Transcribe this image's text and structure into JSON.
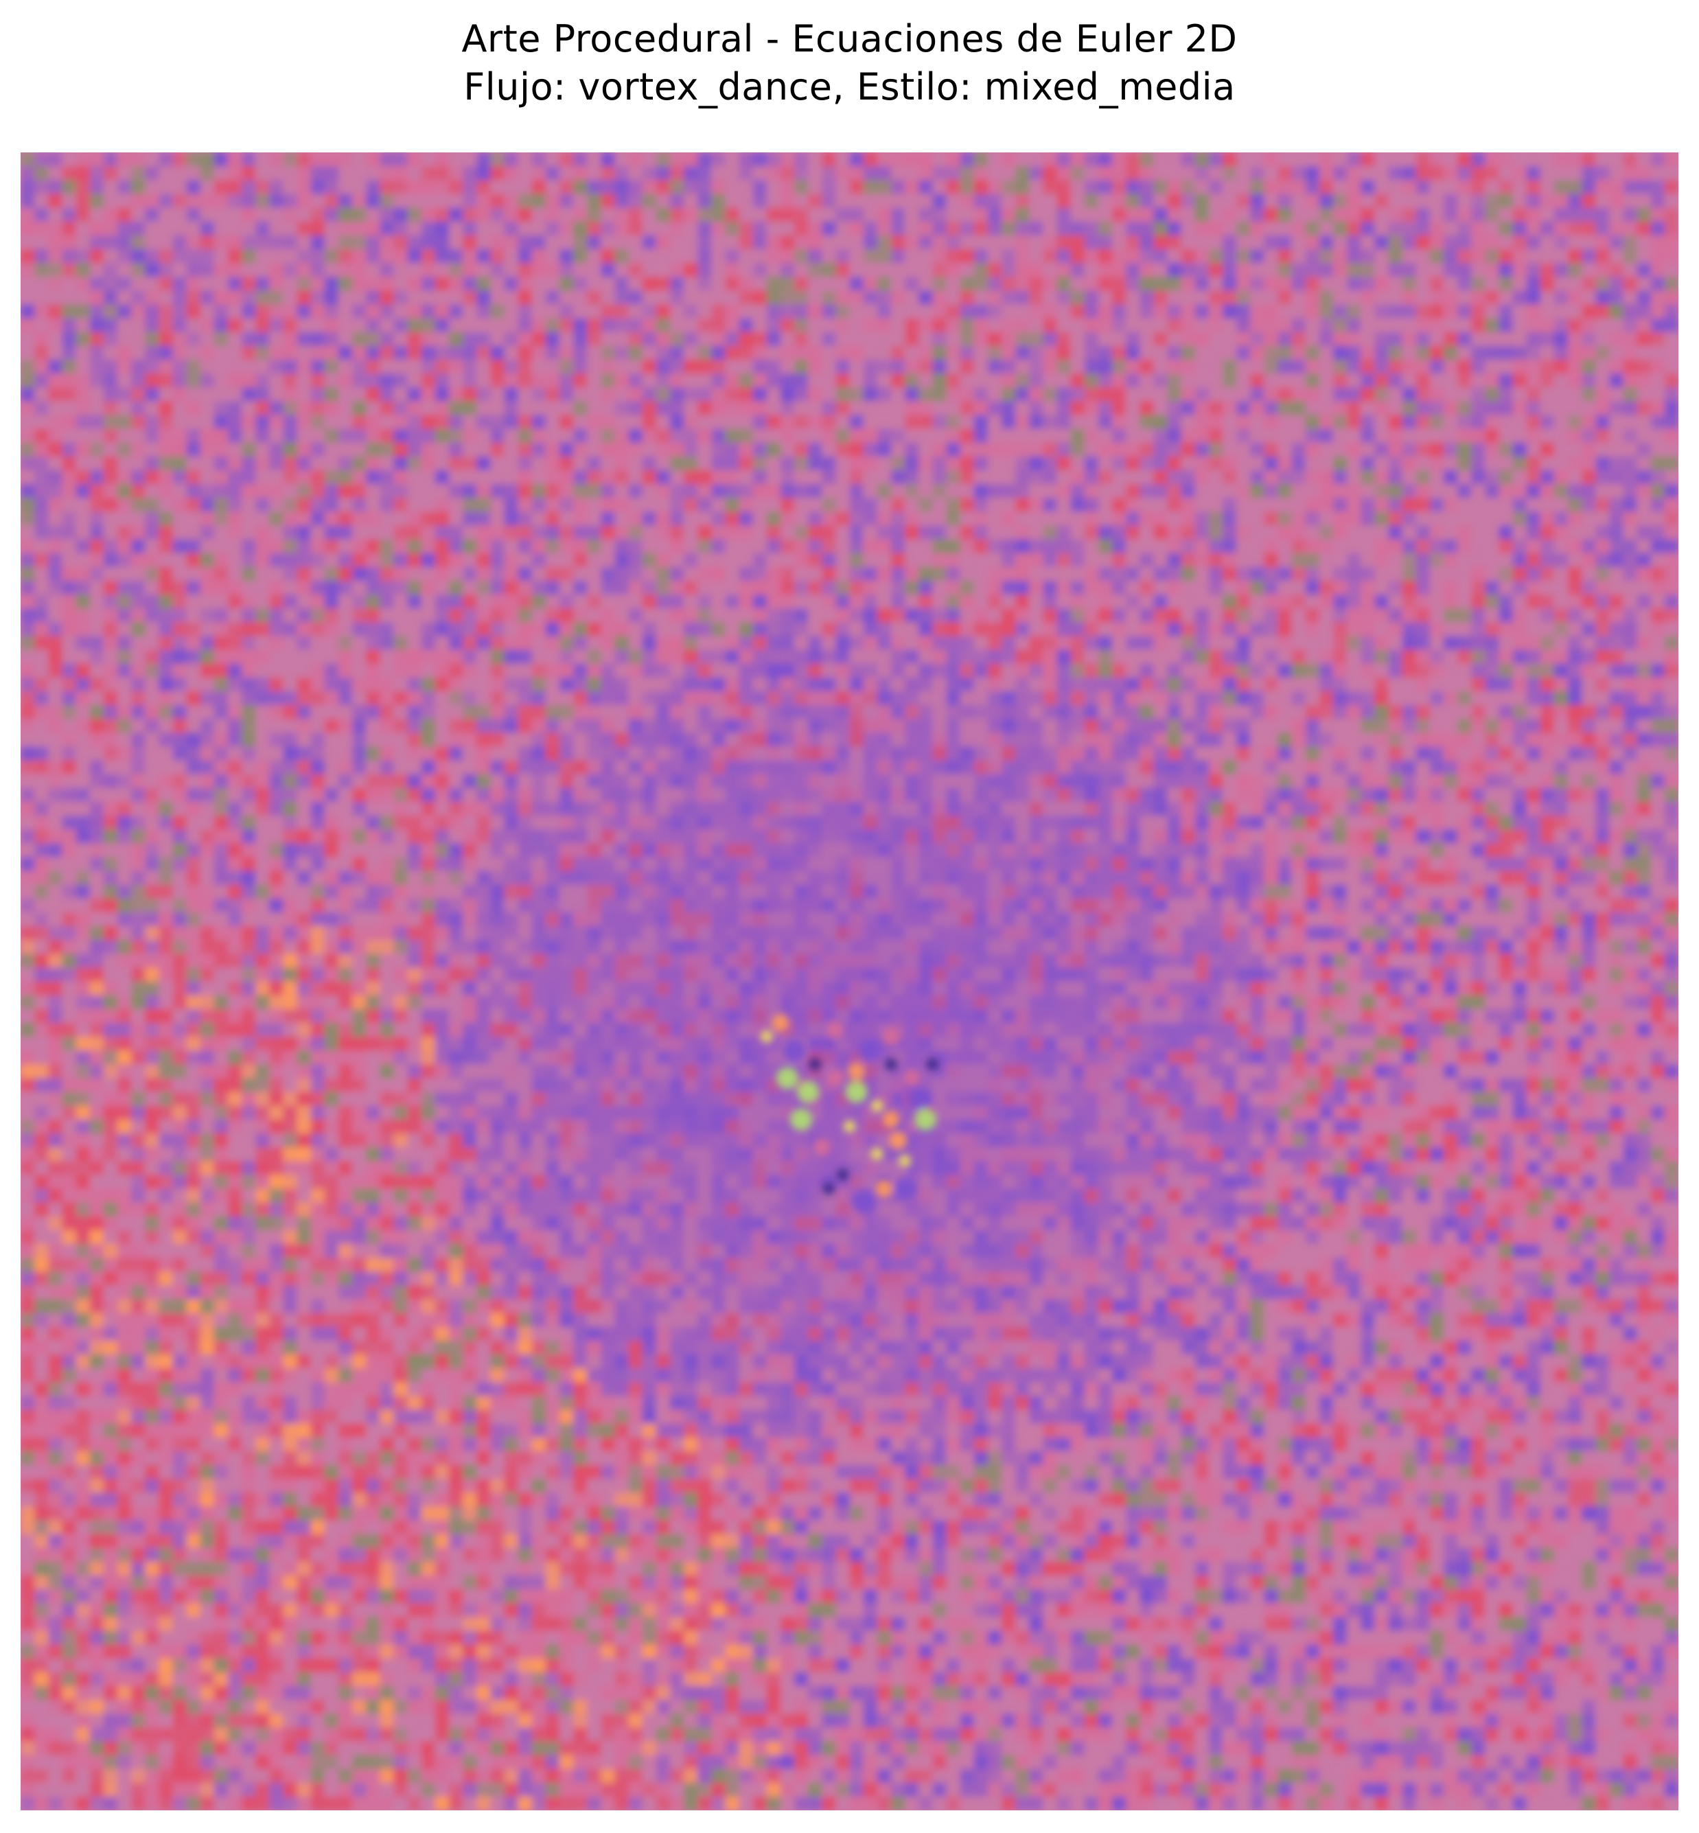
{
  "figure": {
    "title_line1": "Arte Procedural - Ecuaciones de Euler 2D",
    "title_line2": "Flujo: vortex_dance, Estilo: mixed_media"
  },
  "artwork": {
    "palette": {
      "base": "#c97aa6",
      "pink": "#d86c98",
      "red": "#e24b66",
      "purple": "#9b5cc0",
      "violet": "#7a4fd0",
      "green": "#8a8a6a",
      "yellow": "#f0e060",
      "orange": "#ff9a5a"
    }
  }
}
